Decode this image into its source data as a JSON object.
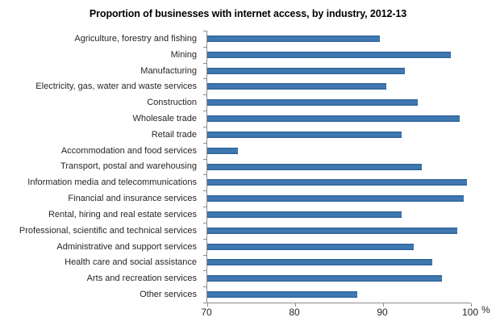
{
  "chart_data": {
    "type": "bar",
    "orientation": "horizontal",
    "title": "Proportion of businesses with internet access, by industry, 2012-13",
    "unit": "%",
    "xlim": [
      70,
      100
    ],
    "xticks": [
      70,
      80,
      90,
      100
    ],
    "grid": false,
    "legend": false,
    "bar_color": "#31669b",
    "axis_color": "#8c8c8c",
    "categories": [
      "Agriculture, forestry and fishing",
      "Mining",
      "Manufacturing",
      "Electricity, gas, water and waste services",
      "Construction",
      "Wholesale trade",
      "Retail trade",
      "Accommodation and food services",
      "Transport, postal and warehousing",
      "Information media and telecommunications",
      "Financial and insurance services",
      "Rental, hiring and real estate services",
      "Professional, scientific and technical services",
      "Administrative and support services",
      "Health care and social assistance",
      "Arts and recreation services",
      "Other services"
    ],
    "values": [
      89.6,
      97.7,
      92.5,
      90.4,
      93.9,
      98.7,
      92.1,
      73.5,
      94.4,
      99.5,
      99.2,
      92.1,
      98.4,
      93.5,
      95.6,
      96.7,
      87.1
    ]
  }
}
